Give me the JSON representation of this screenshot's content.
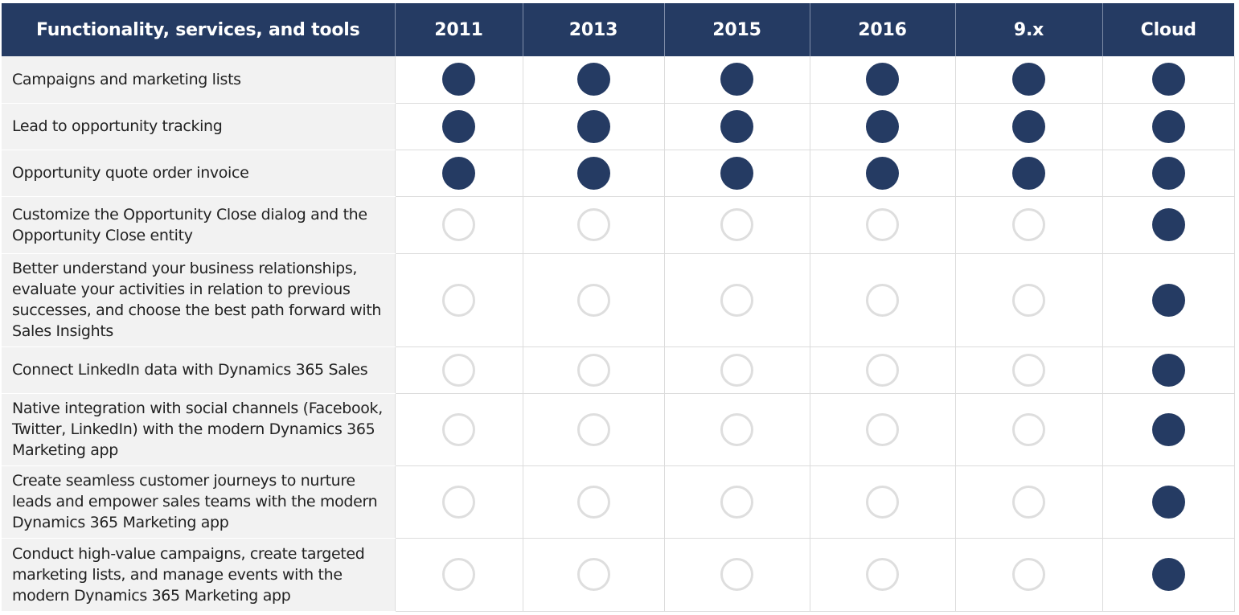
{
  "colors": {
    "header_bg": "#253b63",
    "filled_dot": "#253b63",
    "empty_dot_border": "#dedede",
    "label_bg": "#f2f2f2"
  },
  "table": {
    "headers": [
      "Functionality, services, and tools",
      "2011",
      "2013",
      "2015",
      "2016",
      "9.x",
      "Cloud"
    ],
    "rows": [
      {
        "label": "Campaigns and marketing lists",
        "support": [
          true,
          true,
          true,
          true,
          true,
          true
        ]
      },
      {
        "label": "Lead to opportunity tracking",
        "support": [
          true,
          true,
          true,
          true,
          true,
          true
        ]
      },
      {
        "label": "Opportunity quote order invoice",
        "support": [
          true,
          true,
          true,
          true,
          true,
          true
        ]
      },
      {
        "label": "Customize the Opportunity Close dialog and the Opportunity Close entity",
        "support": [
          false,
          false,
          false,
          false,
          false,
          true
        ]
      },
      {
        "label": "Better understand your business relationships, evaluate your activities in relation to previous successes, and choose the best path forward with Sales Insights",
        "support": [
          false,
          false,
          false,
          false,
          false,
          true
        ]
      },
      {
        "label": "Connect LinkedIn data with Dynamics 365 Sales",
        "support": [
          false,
          false,
          false,
          false,
          false,
          true
        ]
      },
      {
        "label": "Native integration with social channels (Facebook, Twitter, LinkedIn) with the modern Dynamics 365 Marketing app",
        "support": [
          false,
          false,
          false,
          false,
          false,
          true
        ]
      },
      {
        "label": "Create seamless customer journeys to nurture leads and empower sales teams with the modern Dynamics 365 Marketing app",
        "support": [
          false,
          false,
          false,
          false,
          false,
          true
        ]
      },
      {
        "label": "Conduct high-value campaigns, create targeted marketing lists, and manage events with the modern Dynamics 365 Marketing app",
        "support": [
          false,
          false,
          false,
          false,
          false,
          true
        ]
      }
    ]
  }
}
